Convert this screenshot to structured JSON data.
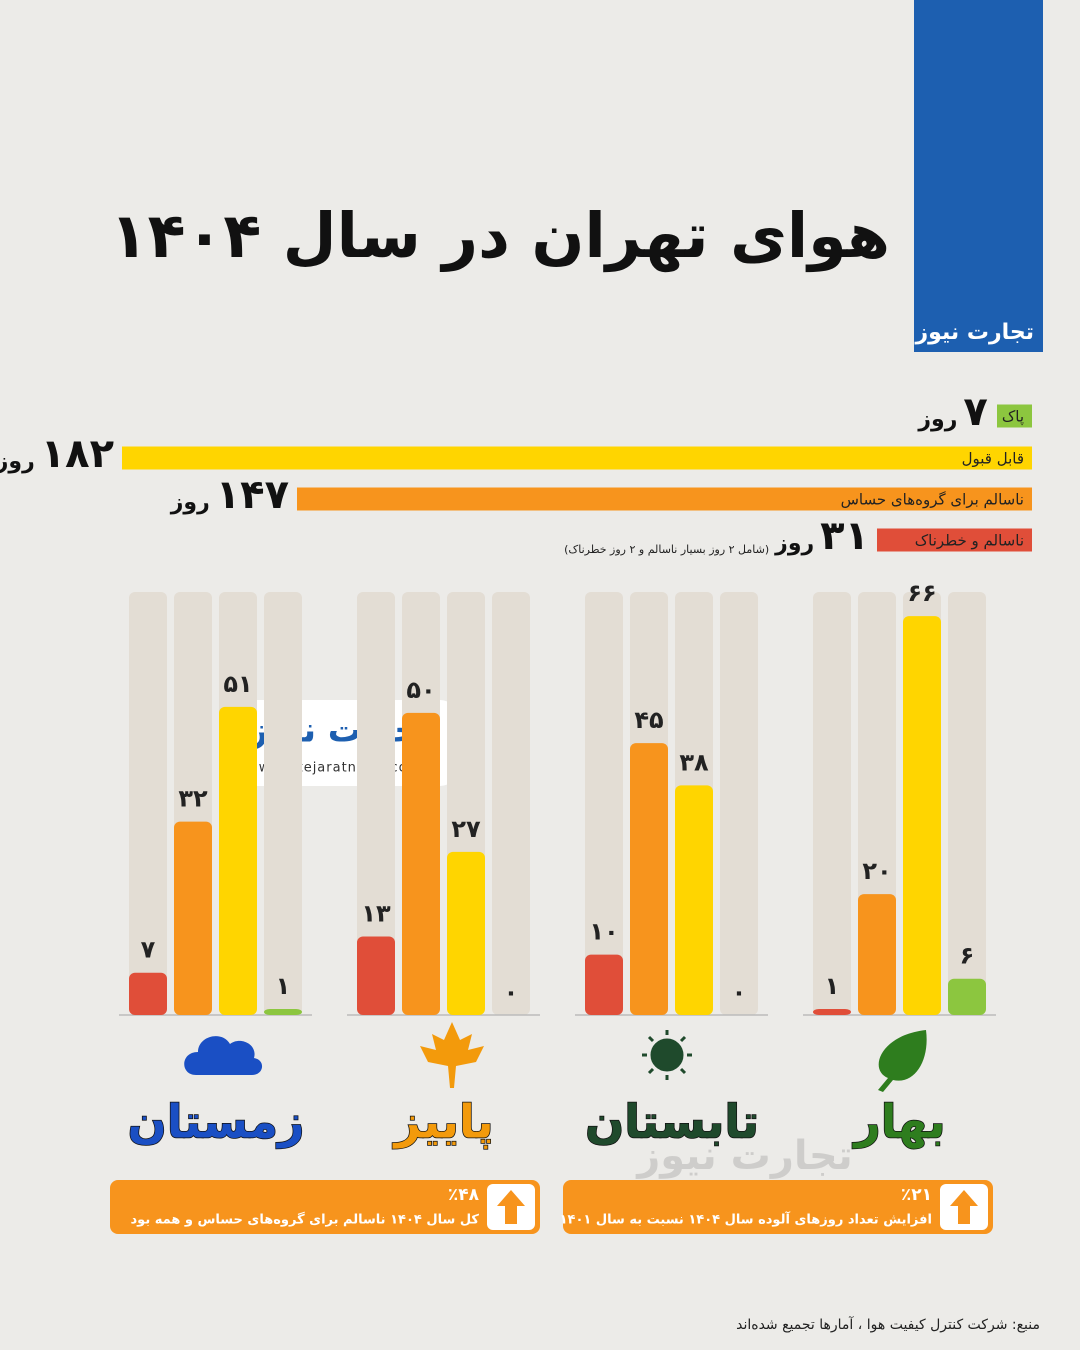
{
  "header": {
    "title": "هوای تهران در سال ۱۴۰۴",
    "logo": "تجارت نیوز"
  },
  "chart_data": [
    {
      "type": "hbar",
      "categories": [
        "پاک",
        "قابل قبول",
        "ناسالم برای گروه‌های حساس",
        "ناسالم و خطرناک"
      ],
      "values": [
        7,
        182,
        147,
        31
      ],
      "value_labels": [
        "۷",
        "۱۸۲",
        "۱۴۷",
        "۳۱"
      ],
      "unit": "روز",
      "note": "(شامل ۲ روز بسیار ناسالم و ۲ روز خطرناک)",
      "colors": [
        "#8cc63f",
        "#ffd500",
        "#f7941d",
        "#e04e39"
      ],
      "xlim": [
        0,
        185
      ]
    },
    {
      "type": "bar",
      "categories": [
        "بهار",
        "تابستان",
        "پاییز",
        "زمستان"
      ],
      "category_colors": [
        "#2e7d1e",
        "#1f4a2c",
        "#f39a0b",
        "#1a4fc4"
      ],
      "series": [
        {
          "color": "#e04e39",
          "values": [
            1,
            10,
            13,
            7
          ],
          "value_labels": [
            "۱",
            "۱۰",
            "۱۳",
            "۷"
          ]
        },
        {
          "color": "#f7941d",
          "values": [
            20,
            45,
            50,
            32
          ],
          "value_labels": [
            "۲۰",
            "۴۵",
            "۵۰",
            "۳۲"
          ]
        },
        {
          "color": "#ffd500",
          "values": [
            66,
            38,
            27,
            51
          ],
          "value_labels": [
            "۶۶",
            "۳۸",
            "۲۷",
            "۵۱"
          ]
        },
        {
          "color": "#8cc63f",
          "values": [
            6,
            0,
            0,
            1
          ],
          "value_labels": [
            "۶",
            "۰",
            "۰",
            "۱"
          ]
        }
      ],
      "ylim": [
        0,
        70
      ]
    }
  ],
  "watermark": {
    "logo": "تجارت نیوز",
    "url": "www.tejaratnews.com"
  },
  "callouts": [
    {
      "value": "٪۲۱",
      "text": "افزایش تعداد روزهای آلوده سال ۱۴۰۴ نسبت به سال ۱۴۰۱"
    },
    {
      "value": "٪۴۸",
      "text": "کل سال ۱۴۰۴ ناسالم برای گروه‌های حساس و همه بود"
    }
  ],
  "source": "منبع: شرکت کنترل کیفیت هوا ، آمارها تجمیع شده‌اند"
}
